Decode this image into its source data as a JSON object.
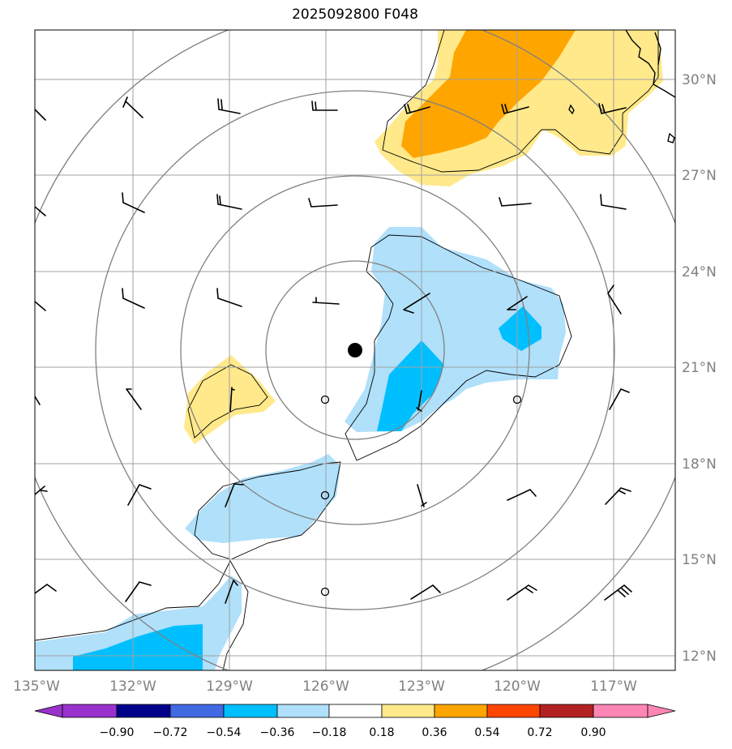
{
  "title": "2025092800 F048",
  "lon_labels": [
    "135°W",
    "132°W",
    "129°W",
    "126°W",
    "123°W",
    "120°W",
    "117°W"
  ],
  "lat_labels": [
    "30°N",
    "27°N",
    "24°N",
    "21°N",
    "18°N",
    "15°N",
    "12°N"
  ],
  "colorbar": {
    "ticks": [
      "−0.90",
      "−0.72",
      "−0.54",
      "−0.36",
      "−0.18",
      "0.18",
      "0.36",
      "0.54",
      "0.72",
      "0.90"
    ],
    "colors": [
      "#9932cc",
      "#00008b",
      "#4169e1",
      "#00bfff",
      "#b0e0fa",
      "#ffffff",
      "#ffe98a",
      "#ffa500",
      "#ff4500",
      "#b22222",
      "#ff86b4"
    ]
  },
  "colors": {
    "light_blue": "#b0e0fa",
    "deep_sky_blue": "#00bfff",
    "light_yellow": "#ffe98a",
    "orange": "#ffa500",
    "grid": "#a0a0a0",
    "range_rings": "#808080"
  },
  "storm_center_marker": "black-dot"
}
